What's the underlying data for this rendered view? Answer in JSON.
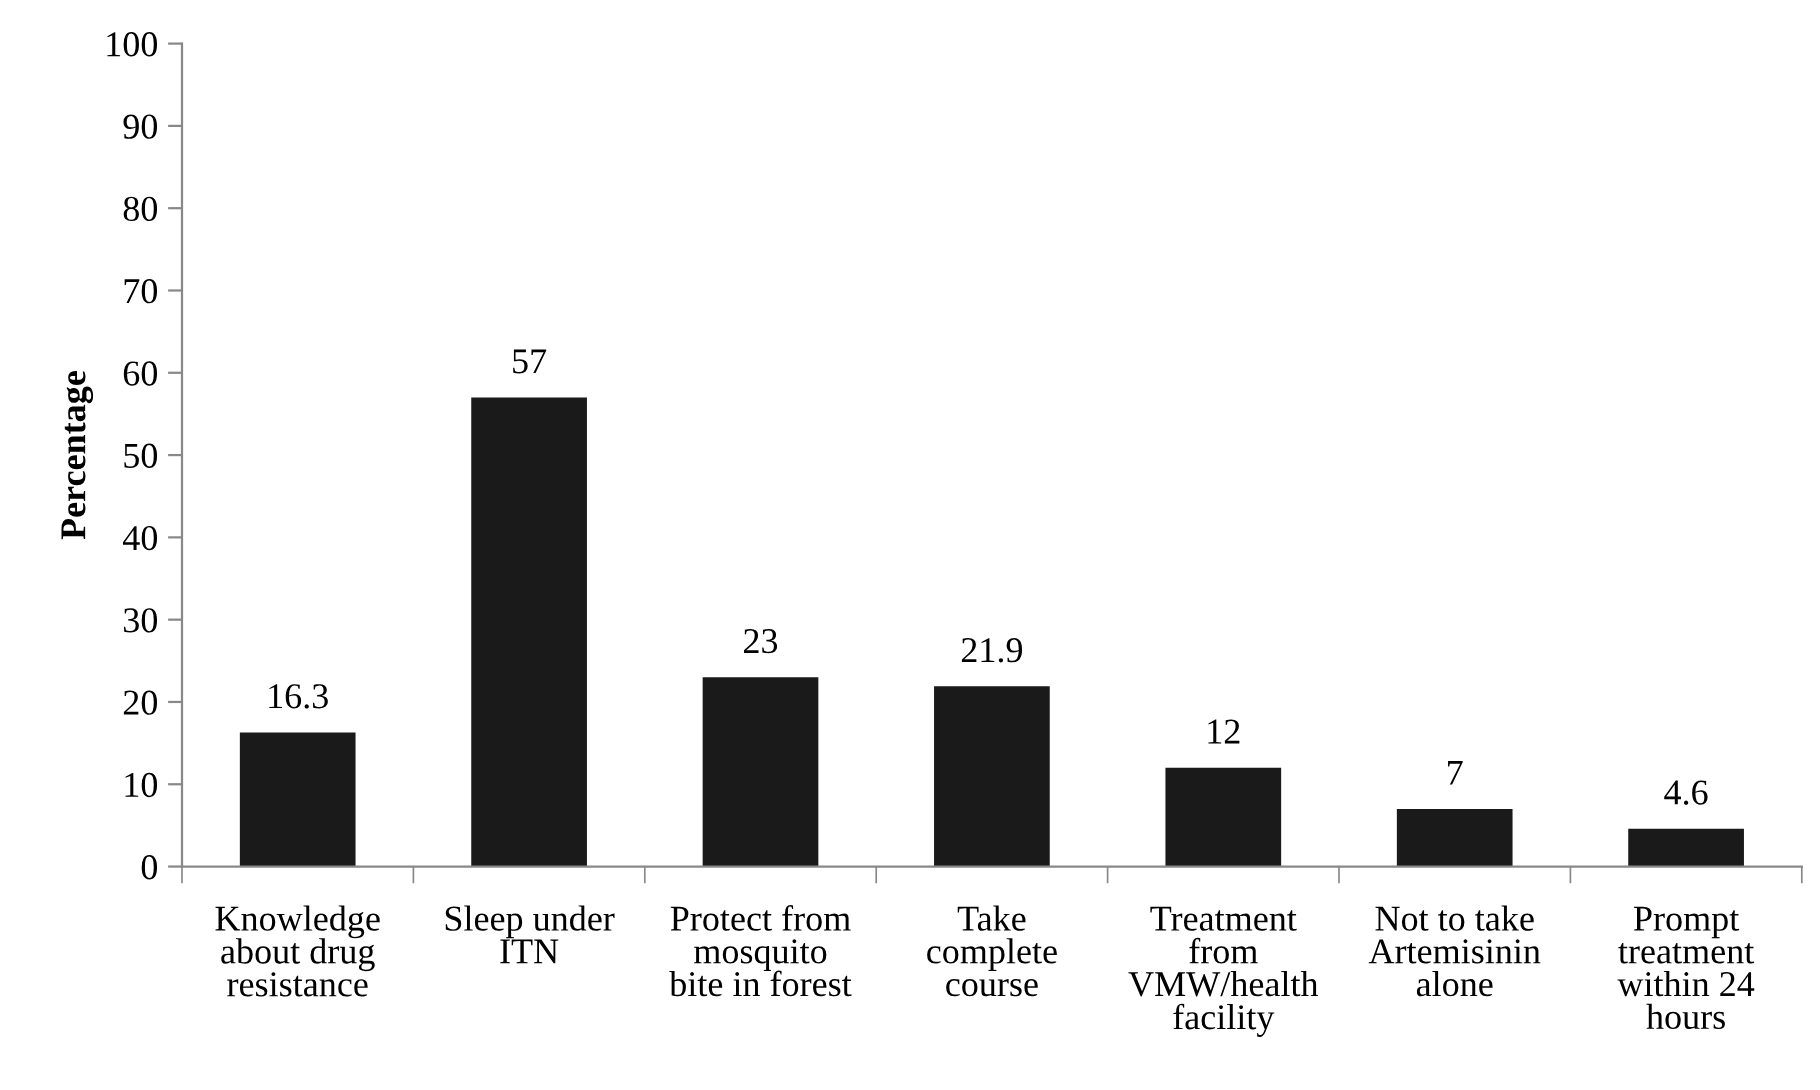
{
  "chart_data": {
    "type": "bar",
    "ylabel": "Percentage",
    "categories": [
      "Knowledge\nabout drug\nresistance",
      "Sleep under\nITN",
      "Protect from\nmosquito\nbite in forest",
      "Take\ncomplete\ncourse",
      "Treatment\nfrom\nVMW/health\nfacility",
      "Not to take\nArtemisinin\nalone",
      "Prompt\ntreatment\nwithin 24\nhours"
    ],
    "values": [
      16.3,
      57,
      23,
      21.9,
      12,
      7,
      4.6
    ],
    "color": "#1a1a1a",
    "ylim": [
      0,
      100
    ],
    "yticks": [
      0,
      10,
      20,
      30,
      40,
      50,
      60,
      70,
      80,
      90,
      100
    ],
    "data_labels": true,
    "grid": false,
    "legend": false
  }
}
